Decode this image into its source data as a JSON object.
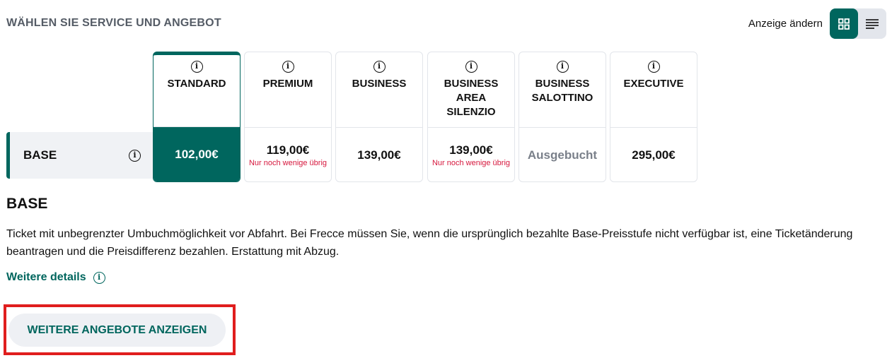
{
  "header": {
    "title": "WÄHLEN SIE SERVICE UND ANGEBOT",
    "view_label": "Anzeige ändern",
    "views": [
      {
        "icon": "grid-icon",
        "active": true
      },
      {
        "icon": "list-icon",
        "active": false
      }
    ]
  },
  "row": {
    "label": "BASE"
  },
  "services": [
    {
      "name": "STANDARD",
      "price": "102,00€",
      "note": "",
      "selected": true
    },
    {
      "name": "PREMIUM",
      "price": "119,00€",
      "note": "Nur noch wenige übrig"
    },
    {
      "name": "BUSINESS",
      "price": "139,00€",
      "note": ""
    },
    {
      "name": "BUSINESS AREA SILENZIO",
      "price": "139,00€",
      "note": "Nur noch wenige übrig"
    },
    {
      "name": "BUSINESS SALOTTINO",
      "price": "Ausgebucht",
      "note": "",
      "sold_out": true
    },
    {
      "name": "EXECUTIVE",
      "price": "295,00€",
      "note": ""
    }
  ],
  "detail": {
    "title": "BASE",
    "description": "Ticket mit unbegrenzter Umbuchmöglichkeit vor Abfahrt. Bei Frecce müssen Sie, wenn die ursprünglich bezahlte Base-Preisstufe nicht verfügbar ist, eine Ticketänderung beantragen und die Preisdifferenz bezahlen. Erstattung mit Abzug.",
    "more_link": "Weitere details"
  },
  "more_offers_button": "WEITERE ANGEBOTE ANZEIGEN",
  "colors": {
    "accent": "#00665e",
    "warning": "#d6173d",
    "highlight": "#e01e1e"
  }
}
